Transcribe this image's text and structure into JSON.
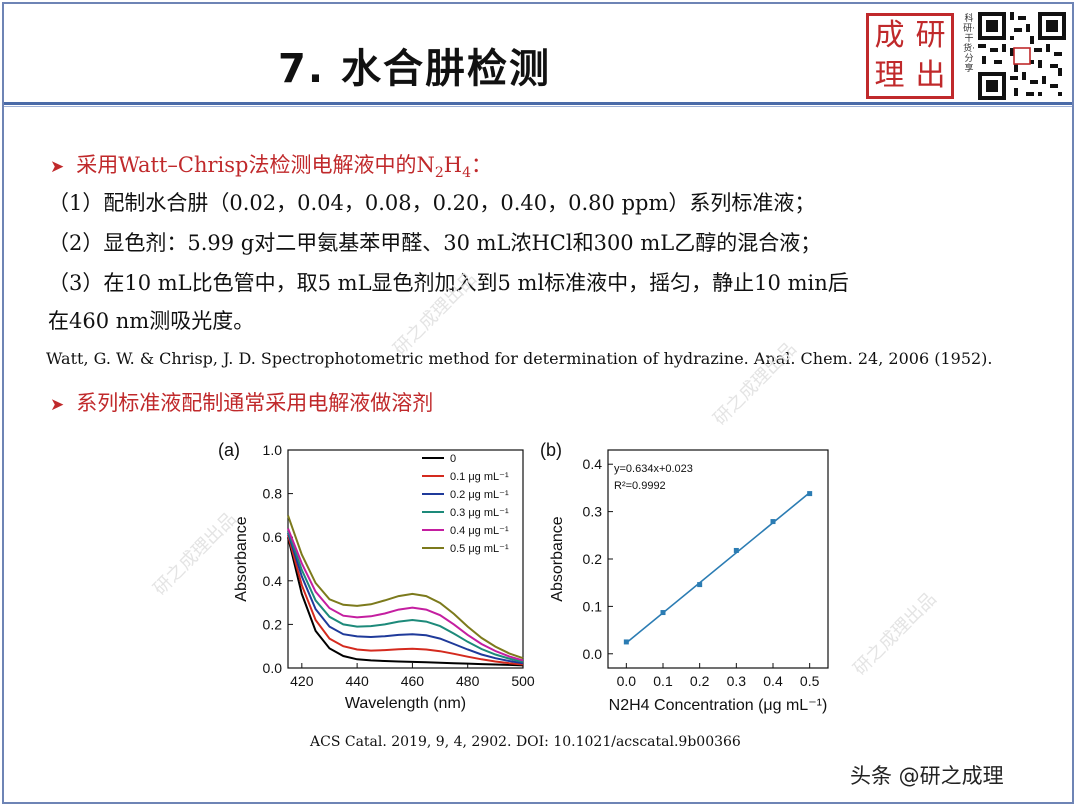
{
  "header": {
    "title": "7. 水合肼检测",
    "seal_chars": [
      "成",
      "研",
      "理",
      "出"
    ],
    "motto": "科研·干货·分享"
  },
  "bullet1": {
    "prefix": "采用Watt–Chrisp法检测电解液中的N",
    "sub1": "2",
    "mid": "H",
    "sub2": "4",
    "suffix": "："
  },
  "steps": [
    "（1）配制水合肼（0.02，0.04，0.08，0.20，0.40，0.80 ppm）系列标准液；",
    "（2）显色剂：5.99 g对二甲氨基苯甲醛、30 mL浓HCl和300 mL乙醇的混合液；",
    "（3）在10 mL比色管中，取5 mL显色剂加入到5 ml标准液中，摇匀，静止10 min后",
    "在460 nm测吸光度。"
  ],
  "reference": "Watt, G. W. & Chrisp, J. D. Spectrophotometric method for determination of hydrazine. Anal. Chem. 24, 2006 (1952).",
  "bullet2": "系列标准液配制通常采用电解液做溶剂",
  "doi": "ACS Catal. 2019, 9, 4, 2902.  DOI: 10.1021/acscatal.9b00366",
  "attribution": "头条 @研之成理",
  "watermark": "研之成理出品",
  "chart_data": [
    {
      "type": "line",
      "panel_label": "(a)",
      "xlabel": "Wavelength (nm)",
      "ylabel": "Absorbance",
      "xlim": [
        415,
        500
      ],
      "ylim": [
        0.0,
        1.0
      ],
      "xticks": [
        420,
        440,
        460,
        480,
        500
      ],
      "yticks": [
        0.0,
        0.2,
        0.4,
        0.6,
        0.8,
        1.0
      ],
      "legend_position": "top-right",
      "x": [
        415,
        420,
        425,
        430,
        435,
        440,
        445,
        450,
        455,
        460,
        465,
        470,
        475,
        480,
        485,
        490,
        495,
        500
      ],
      "series": [
        {
          "name": "0",
          "color": "#000000",
          "values": [
            0.6,
            0.34,
            0.17,
            0.09,
            0.055,
            0.04,
            0.035,
            0.032,
            0.03,
            0.028,
            0.026,
            0.024,
            0.022,
            0.02,
            0.018,
            0.016,
            0.014,
            0.012
          ]
        },
        {
          "name": "0.1 μg mL⁻¹",
          "color": "#d42a1e",
          "values": [
            0.61,
            0.38,
            0.22,
            0.135,
            0.1,
            0.085,
            0.08,
            0.082,
            0.086,
            0.088,
            0.085,
            0.077,
            0.065,
            0.052,
            0.04,
            0.03,
            0.022,
            0.016
          ]
        },
        {
          "name": "0.2 μg mL⁻¹",
          "color": "#1f3a9a",
          "values": [
            0.62,
            0.42,
            0.27,
            0.19,
            0.155,
            0.145,
            0.142,
            0.146,
            0.152,
            0.155,
            0.15,
            0.135,
            0.11,
            0.085,
            0.062,
            0.045,
            0.032,
            0.022
          ]
        },
        {
          "name": "0.3 μg mL⁻¹",
          "color": "#1d8a7a",
          "values": [
            0.63,
            0.45,
            0.31,
            0.235,
            0.2,
            0.19,
            0.192,
            0.2,
            0.213,
            0.22,
            0.213,
            0.192,
            0.158,
            0.12,
            0.087,
            0.062,
            0.043,
            0.028
          ]
        },
        {
          "name": "0.4 μg mL⁻¹",
          "color": "#c41ea0",
          "values": [
            0.64,
            0.48,
            0.35,
            0.275,
            0.24,
            0.232,
            0.237,
            0.25,
            0.268,
            0.277,
            0.268,
            0.242,
            0.2,
            0.152,
            0.11,
            0.078,
            0.053,
            0.035
          ]
        },
        {
          "name": "0.5 μg mL⁻¹",
          "color": "#7c7a1c",
          "values": [
            0.7,
            0.52,
            0.39,
            0.315,
            0.29,
            0.285,
            0.292,
            0.31,
            0.33,
            0.34,
            0.33,
            0.298,
            0.248,
            0.19,
            0.138,
            0.098,
            0.067,
            0.045
          ]
        }
      ]
    },
    {
      "type": "scatter",
      "panel_label": "(b)",
      "xlabel": "N2H4 Concentration (μg mL⁻¹)",
      "ylabel": "Absorbance",
      "xlim": [
        -0.05,
        0.55
      ],
      "ylim": [
        -0.03,
        0.43
      ],
      "xticks": [
        0.0,
        0.1,
        0.2,
        0.3,
        0.4,
        0.5
      ],
      "yticks": [
        0.0,
        0.1,
        0.2,
        0.3,
        0.4
      ],
      "annotations": [
        "y=0.634x+0.023",
        "R²=0.9992"
      ],
      "fit": {
        "slope": 0.634,
        "intercept": 0.023
      },
      "x": [
        0.0,
        0.1,
        0.2,
        0.3,
        0.4,
        0.5
      ],
      "values": [
        0.025,
        0.087,
        0.146,
        0.218,
        0.279,
        0.338
      ],
      "color": "#2b7cb3"
    }
  ]
}
